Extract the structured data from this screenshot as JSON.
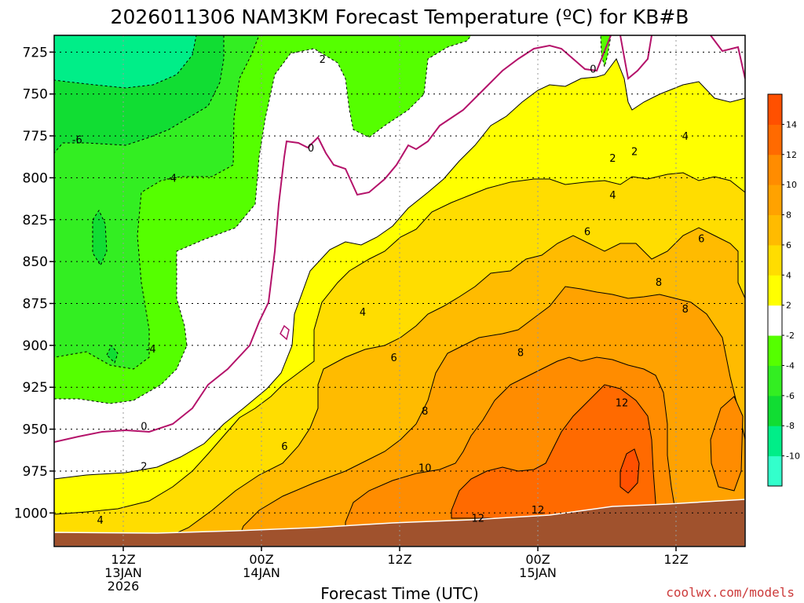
{
  "chart_data": {
    "type": "contour",
    "title": "2026011306 NAM3KM Forecast Temperature (ºC) for KB#B",
    "xlabel": "Forecast Time (UTC)",
    "ylabel": "",
    "credit": "coolwx.com/models",
    "y_axis": {
      "units": "hPa",
      "inverted": true,
      "range": [
        1020,
        715
      ],
      "ticks": [
        725,
        750,
        775,
        800,
        825,
        850,
        875,
        900,
        925,
        950,
        975,
        1000
      ],
      "tick_labels": [
        "725",
        "750",
        "775",
        "800",
        "825",
        "850",
        "875",
        "900",
        "925",
        "950",
        "975",
        "1000"
      ]
    },
    "x_axis": {
      "units": "forecast hours from 2026011306",
      "range": [
        0,
        60
      ],
      "ticks": [
        6,
        18,
        30,
        42,
        54
      ],
      "tick_labels": [
        [
          "12Z",
          "13JAN",
          "2026"
        ],
        [
          "00Z",
          "14JAN"
        ],
        [
          "12Z"
        ],
        [
          "00Z",
          "15JAN"
        ],
        [
          "12Z"
        ]
      ]
    },
    "grid": true,
    "colorbar": {
      "position": "right",
      "levels": [
        -12,
        -10,
        -8,
        -6,
        -4,
        -2,
        2,
        4,
        6,
        8,
        10,
        12,
        14,
        16
      ],
      "tick_labels": [
        "-10",
        "-8",
        "-6",
        "-4",
        "-2",
        "2",
        "4",
        "6",
        "8",
        "10",
        "12",
        "14"
      ],
      "colors": [
        "#33ffcc",
        "#00ee88",
        "#11dd33",
        "#33ee22",
        "#55ff00",
        "#ffffff",
        "#ffff00",
        "#ffdd00",
        "#ffbb00",
        "#ffa200",
        "#ff8c00",
        "#ff6a00",
        "#ff5000"
      ]
    },
    "contour_labels": [
      {
        "value": "2",
        "x_hr": 23.3,
        "p": 729
      },
      {
        "value": "0",
        "x_hr": 46.8,
        "p": 735
      },
      {
        "value": "-6",
        "x_hr": 2.0,
        "p": 777
      },
      {
        "value": "0",
        "x_hr": 22.3,
        "p": 782
      },
      {
        "value": "2",
        "x_hr": 48.5,
        "p": 788
      },
      {
        "value": "2",
        "x_hr": 50.4,
        "p": 784
      },
      {
        "value": "4",
        "x_hr": 54.8,
        "p": 775
      },
      {
        "value": "-4",
        "x_hr": 10.2,
        "p": 800
      },
      {
        "value": "4",
        "x_hr": 48.5,
        "p": 810
      },
      {
        "value": "6",
        "x_hr": 46.3,
        "p": 832
      },
      {
        "value": "6",
        "x_hr": 56.2,
        "p": 836
      },
      {
        "value": "8",
        "x_hr": 52.5,
        "p": 862
      },
      {
        "value": "8",
        "x_hr": 54.8,
        "p": 878
      },
      {
        "value": "4",
        "x_hr": 26.8,
        "p": 880
      },
      {
        "value": "-4",
        "x_hr": 8.4,
        "p": 902
      },
      {
        "value": "6",
        "x_hr": 29.5,
        "p": 907
      },
      {
        "value": "8",
        "x_hr": 40.5,
        "p": 904
      },
      {
        "value": "12",
        "x_hr": 49.3,
        "p": 934
      },
      {
        "value": "8",
        "x_hr": 32.2,
        "p": 939
      },
      {
        "value": "0",
        "x_hr": 7.8,
        "p": 948
      },
      {
        "value": "6",
        "x_hr": 20.0,
        "p": 960
      },
      {
        "value": "2",
        "x_hr": 7.8,
        "p": 972
      },
      {
        "value": "10",
        "x_hr": 32.2,
        "p": 973
      },
      {
        "value": "12",
        "x_hr": 42.0,
        "p": 998
      },
      {
        "value": "12",
        "x_hr": 36.8,
        "p": 1003
      },
      {
        "value": "4",
        "x_hr": 4.0,
        "p": 1004
      }
    ]
  }
}
